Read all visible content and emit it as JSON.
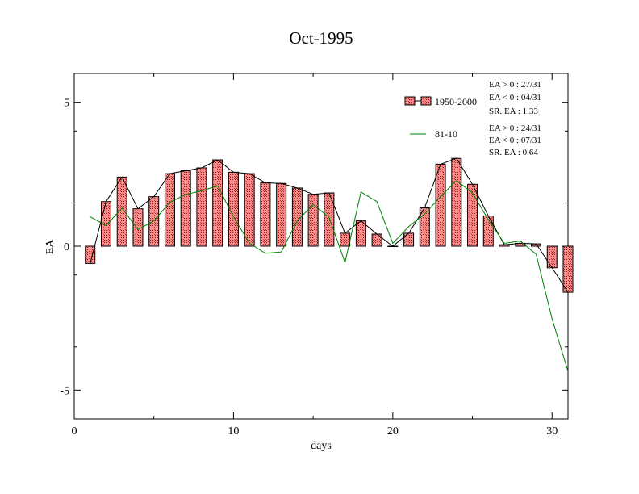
{
  "chart_data": {
    "type": "bar",
    "title": "Oct-1995",
    "xlabel": "days",
    "ylabel": "EA",
    "xlim": [
      0,
      31
    ],
    "ylim": [
      -6,
      6
    ],
    "x_ticks": [
      0,
      10,
      20,
      30
    ],
    "y_ticks": [
      -5,
      0,
      5
    ],
    "x": [
      1,
      2,
      3,
      4,
      5,
      6,
      7,
      8,
      9,
      10,
      11,
      12,
      13,
      14,
      15,
      16,
      17,
      18,
      19,
      20,
      21,
      22,
      23,
      24,
      25,
      26,
      27,
      28,
      29,
      30,
      31
    ],
    "series": [
      {
        "name": "1950-2000",
        "kind": "bar",
        "color": "#ff8080",
        "values": [
          -0.6,
          1.55,
          2.4,
          1.3,
          1.72,
          2.52,
          2.62,
          2.72,
          3.0,
          2.57,
          2.52,
          2.2,
          2.18,
          2.02,
          1.8,
          1.85,
          0.45,
          0.88,
          0.42,
          0.0,
          0.45,
          1.33,
          2.85,
          3.05,
          2.15,
          1.05,
          0.05,
          0.1,
          0.08,
          -0.75,
          -1.6
        ]
      },
      {
        "name": "81-10",
        "kind": "line",
        "color": "#008000",
        "values": [
          1.02,
          0.72,
          1.32,
          0.58,
          0.88,
          1.52,
          1.8,
          1.92,
          2.1,
          1.02,
          0.1,
          -0.25,
          -0.2,
          0.88,
          1.45,
          1.0,
          -0.57,
          1.88,
          1.55,
          0.1,
          0.68,
          1.12,
          1.72,
          2.28,
          1.85,
          0.92,
          0.1,
          0.18,
          -0.28,
          -2.52,
          -4.35
        ]
      }
    ],
    "legend": [
      {
        "label": "1950-2000",
        "stats": [
          "EA > 0 : 27/31",
          "EA < 0 : 04/31",
          "SR. EA :  1.33"
        ]
      },
      {
        "label": "81-10",
        "stats": [
          "EA > 0 : 24/31",
          "EA < 0 : 07/31",
          "SR. EA :  0.64"
        ]
      }
    ],
    "legend_position": "top-right",
    "grid": false
  }
}
